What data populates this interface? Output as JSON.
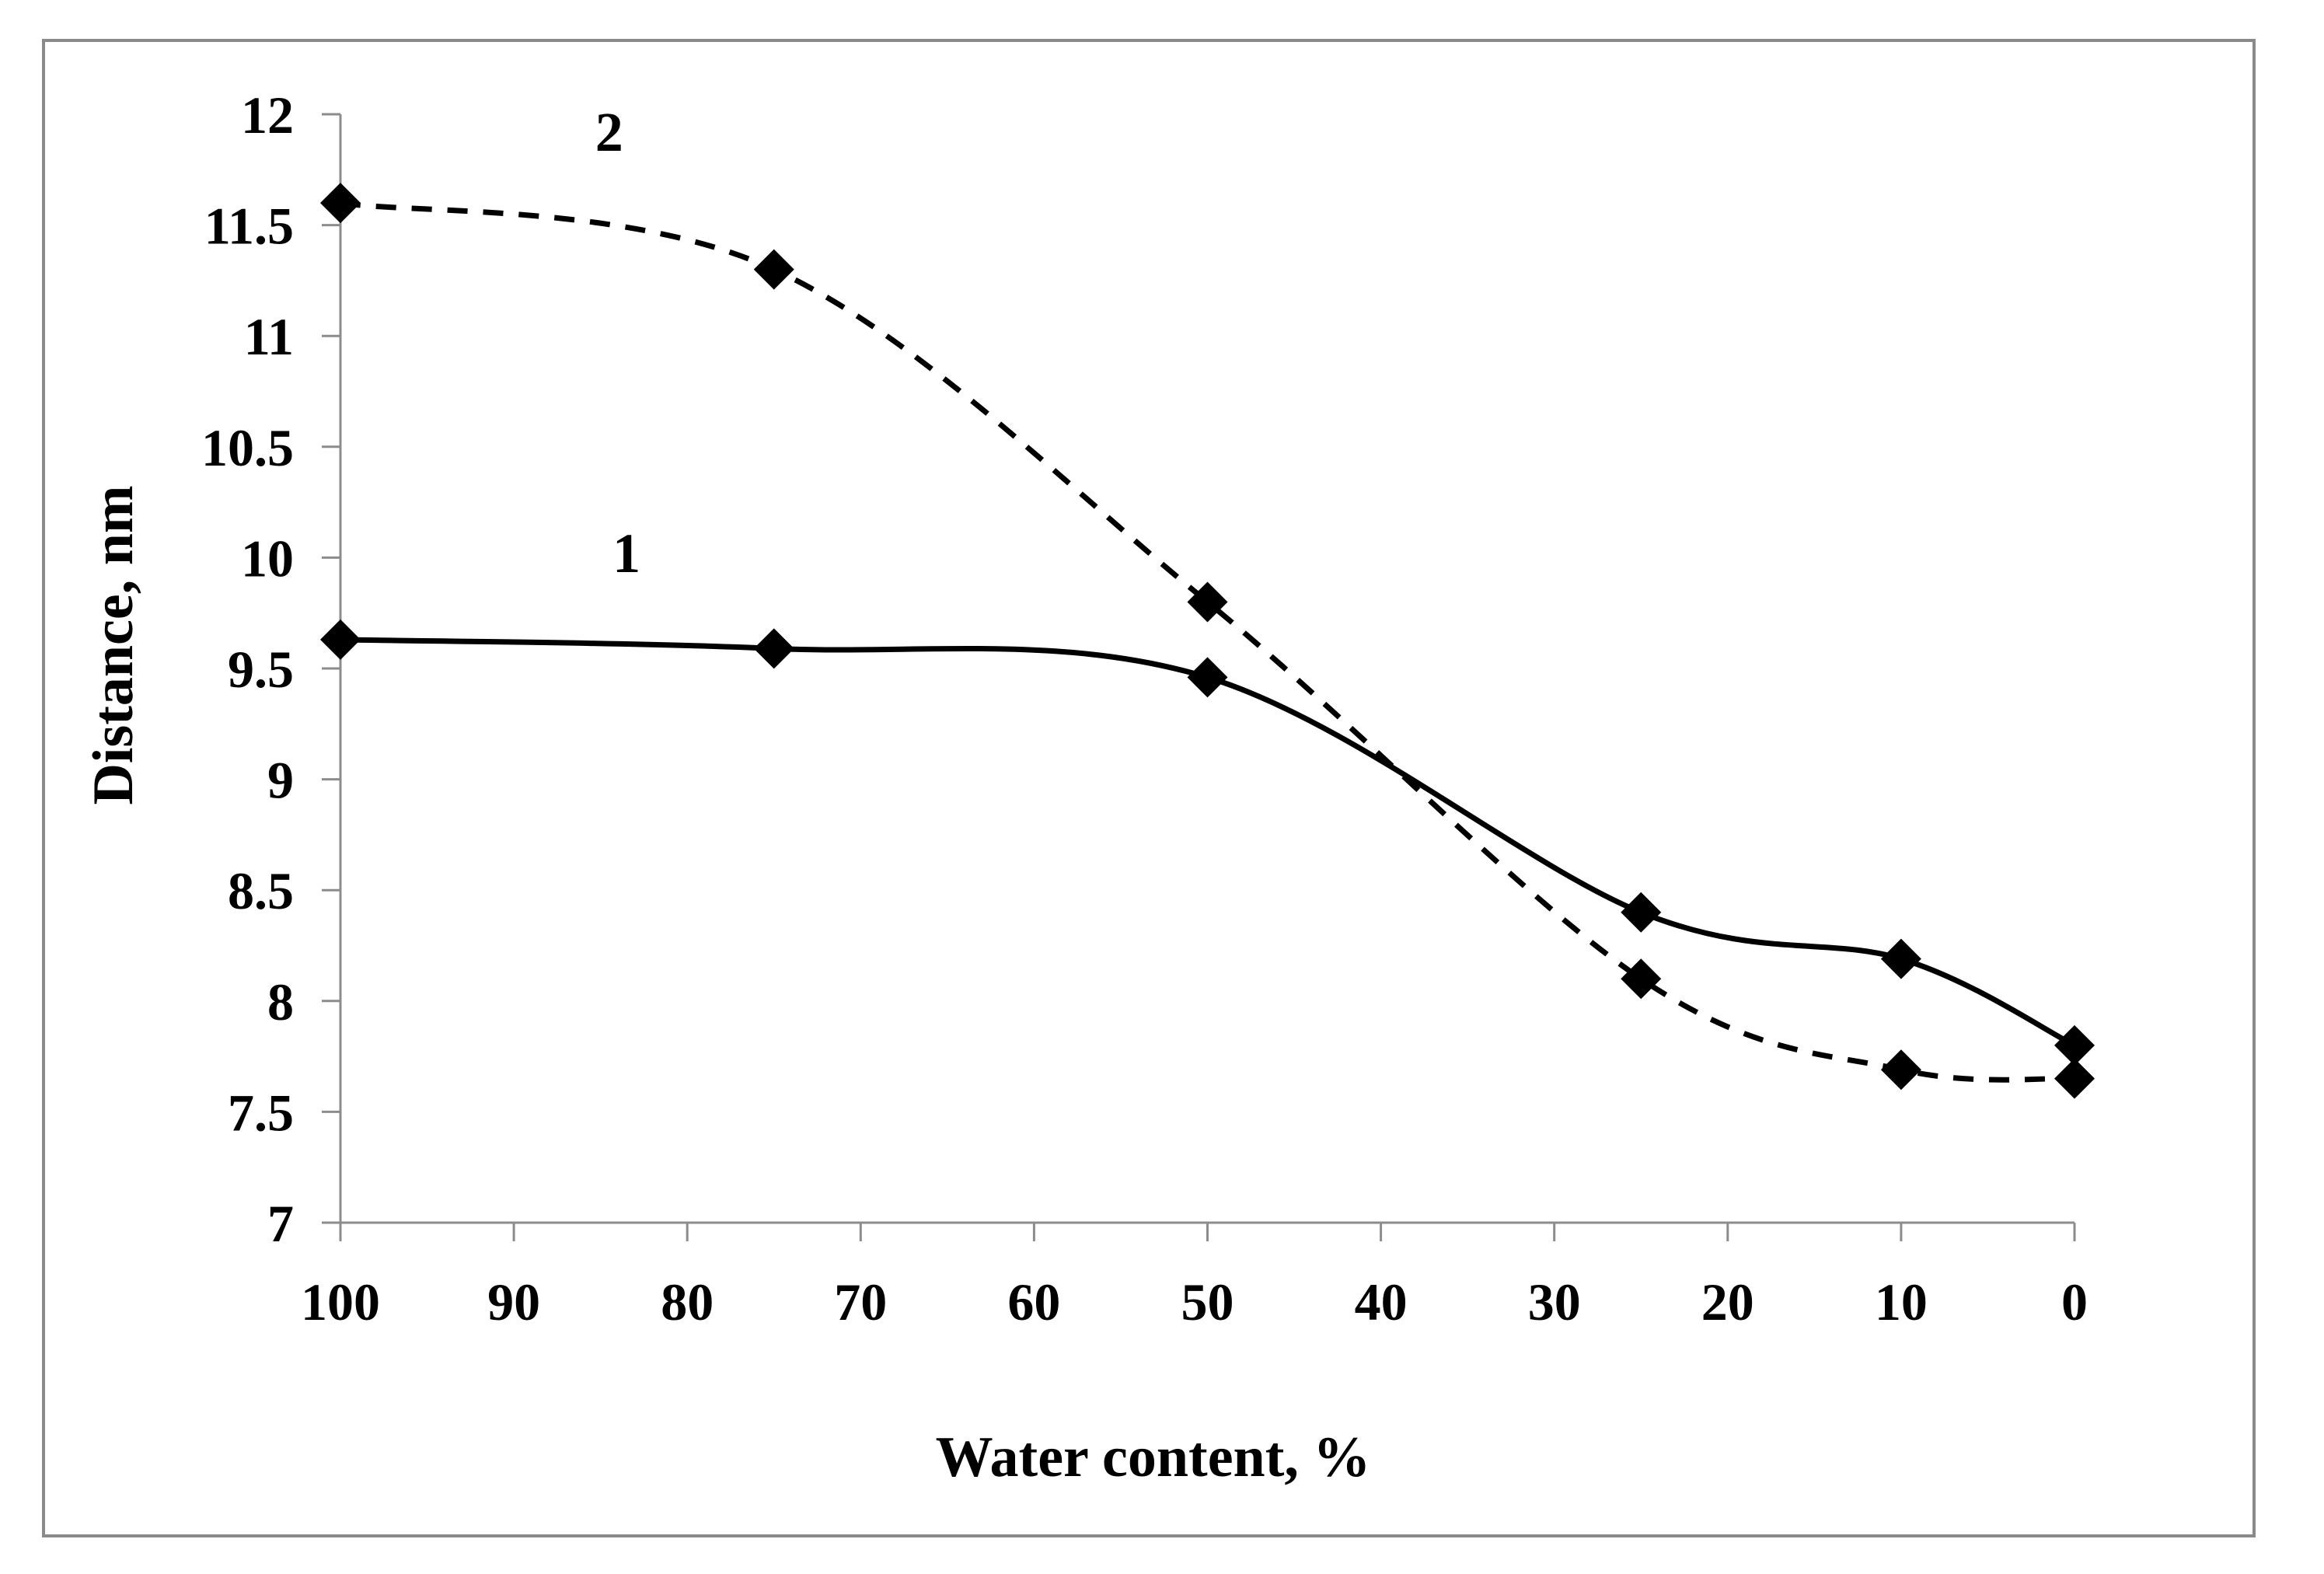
{
  "chart_data": {
    "type": "line",
    "title": "",
    "xlabel": "Water content, %",
    "ylabel": "Distance, nm",
    "xlim": [
      100,
      0
    ],
    "ylim": [
      7,
      12
    ],
    "x_ticks": [
      "100",
      "90",
      "80",
      "70",
      "60",
      "50",
      "40",
      "30",
      "20",
      "10",
      "0"
    ],
    "y_ticks": [
      "7",
      "7.5",
      "8",
      "8.5",
      "9",
      "9.5",
      "10",
      "10.5",
      "11",
      "11.5",
      "12"
    ],
    "grid": false,
    "legend": "none",
    "series": [
      {
        "name": "1",
        "label": "1",
        "style": "solid",
        "marker": "diamond",
        "color": "#000000",
        "x": [
          100,
          75,
          50,
          25,
          10,
          0
        ],
        "y": [
          9.63,
          9.59,
          9.46,
          8.4,
          8.19,
          7.8
        ]
      },
      {
        "name": "2",
        "label": "2",
        "style": "dashed",
        "marker": "diamond",
        "color": "#000000",
        "x": [
          100,
          75,
          50,
          25,
          10,
          0
        ],
        "y": [
          11.6,
          11.3,
          9.8,
          8.1,
          7.69,
          7.65
        ]
      }
    ]
  }
}
